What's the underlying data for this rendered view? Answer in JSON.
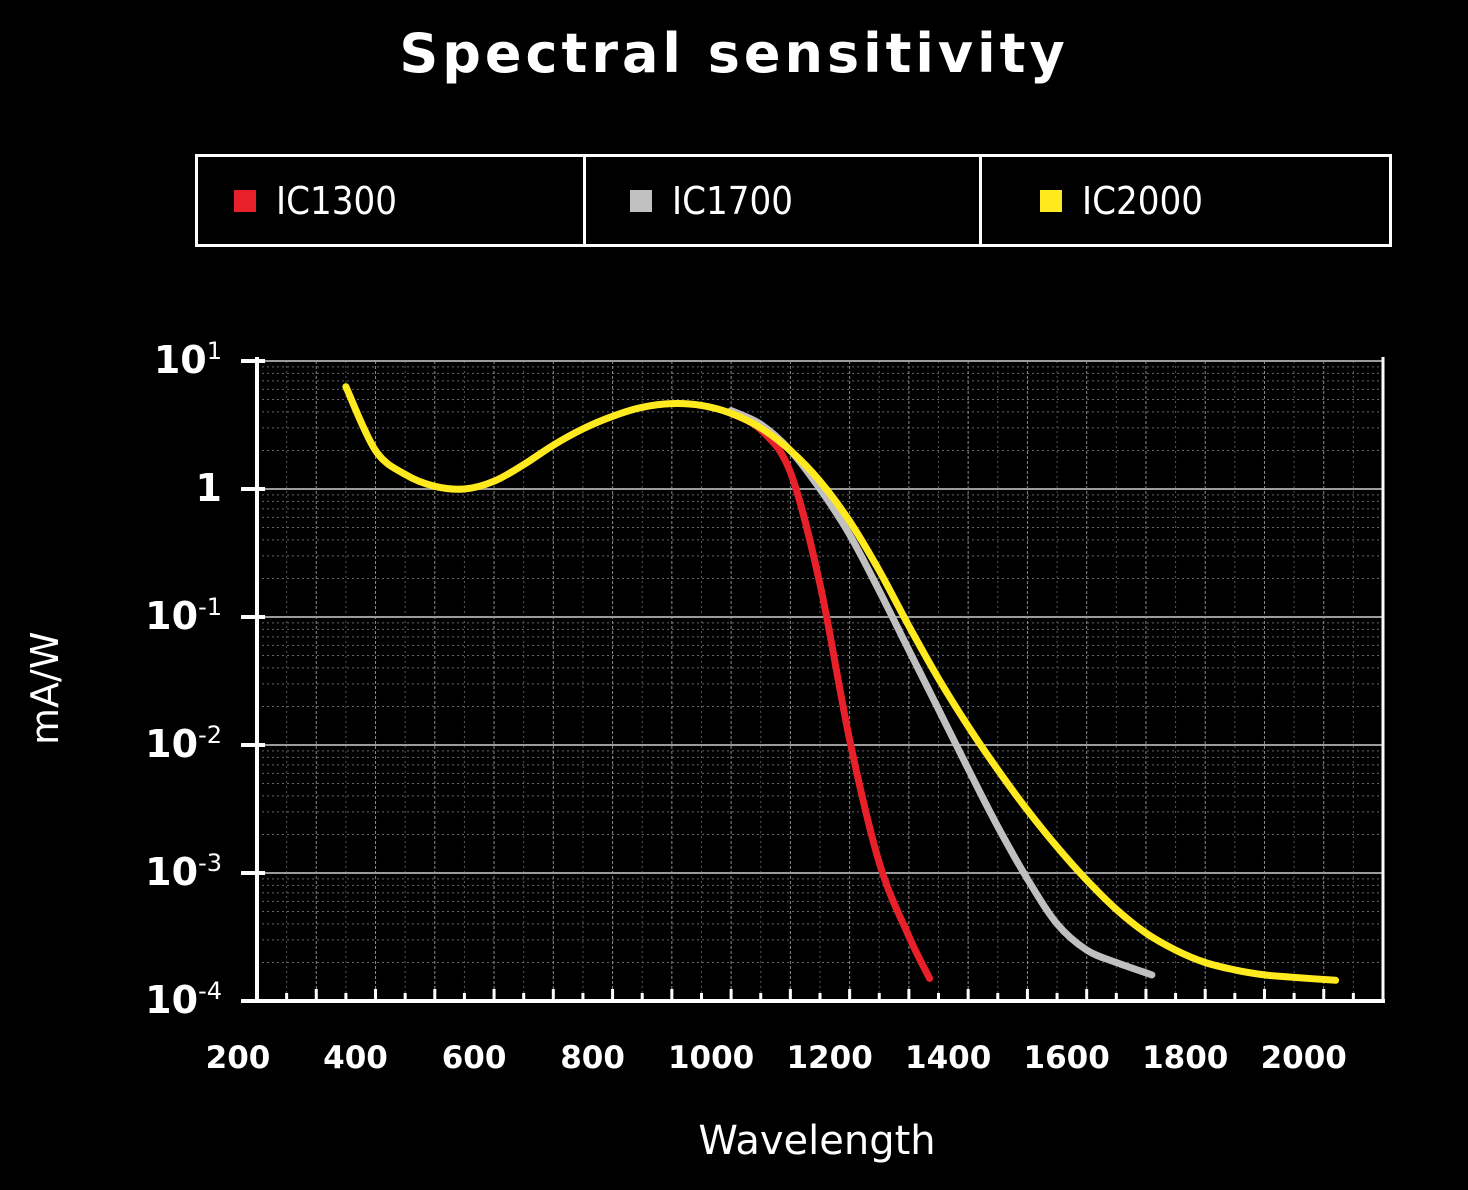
{
  "chart_data": {
    "type": "line",
    "title": "Spectral sensitivity",
    "xlabel": "Wavelength",
    "ylabel": "mA/W",
    "xlim": [
      200,
      2100
    ],
    "ylim": [
      0.0001,
      10
    ],
    "yscale": "log",
    "x_ticks": [
      "200",
      "400",
      "600",
      "800",
      "1000",
      "1200",
      "1400",
      "1600",
      "1800",
      "2000"
    ],
    "y_ticks": [
      {
        "base": "10",
        "exp": "1"
      },
      {
        "base": "1",
        "exp": ""
      },
      {
        "base": "10",
        "exp": "-1"
      },
      {
        "base": "10",
        "exp": "-2"
      },
      {
        "base": "10",
        "exp": "-3"
      },
      {
        "base": "10",
        "exp": "-4"
      }
    ],
    "grid": true,
    "legend_position": "top",
    "series": [
      {
        "name": "IC1300",
        "color": "#e8202a",
        "x": [
          1000,
          1050,
          1100,
          1150,
          1200,
          1250,
          1300,
          1335
        ],
        "y": [
          3.9,
          2.9,
          1.35,
          0.18,
          0.011,
          0.0012,
          0.00032,
          0.00015
        ]
      },
      {
        "name": "IC1700",
        "color": "#c0c0c0",
        "x": [
          1000,
          1050,
          1100,
          1150,
          1200,
          1250,
          1300,
          1350,
          1400,
          1450,
          1500,
          1550,
          1600,
          1650,
          1710
        ],
        "y": [
          4.1,
          3.2,
          2.0,
          1.0,
          0.44,
          0.16,
          0.055,
          0.019,
          0.0065,
          0.0023,
          0.0009,
          0.0004,
          0.00025,
          0.0002,
          0.00016
        ]
      },
      {
        "name": "IC2000",
        "color": "#ffea1f",
        "x": [
          350,
          400,
          450,
          500,
          550,
          600,
          650,
          700,
          750,
          800,
          850,
          900,
          950,
          1000,
          1050,
          1100,
          1150,
          1200,
          1250,
          1300,
          1350,
          1400,
          1450,
          1500,
          1550,
          1600,
          1650,
          1700,
          1750,
          1800,
          1850,
          1900,
          1950,
          2020
        ],
        "y": [
          6.3,
          2.0,
          1.3,
          1.05,
          1.0,
          1.15,
          1.55,
          2.2,
          2.95,
          3.7,
          4.35,
          4.65,
          4.5,
          3.9,
          3.0,
          2.0,
          1.15,
          0.56,
          0.23,
          0.085,
          0.033,
          0.014,
          0.0064,
          0.0031,
          0.0016,
          0.00088,
          0.00052,
          0.00034,
          0.00025,
          0.0002,
          0.000175,
          0.00016,
          0.000153,
          0.000145
        ]
      }
    ]
  }
}
